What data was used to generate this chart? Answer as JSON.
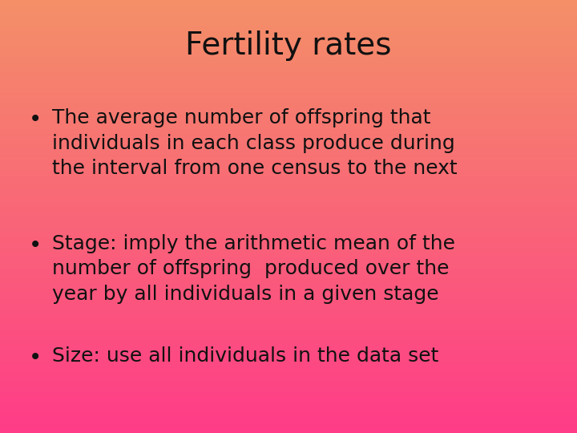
{
  "title": "Fertility rates",
  "title_fontsize": 28,
  "title_color": "#111111",
  "bullet1_lines": [
    "The average number of offspring that",
    "individuals in each class produce during",
    "the interval from one census to the next"
  ],
  "bullet2_lines": [
    "Stage: imply the arithmetic mean of the",
    "number of offspring  produced over the",
    "year by all individuals in a given stage"
  ],
  "bullet3_lines": [
    "Size: use all individuals in the data set"
  ],
  "text_color": "#111111",
  "body_fontsize": 18,
  "bg_color_top": "#F49068",
  "bg_color_bottom": "#FF3C88",
  "figwidth": 7.2,
  "figheight": 5.4,
  "dpi": 100
}
